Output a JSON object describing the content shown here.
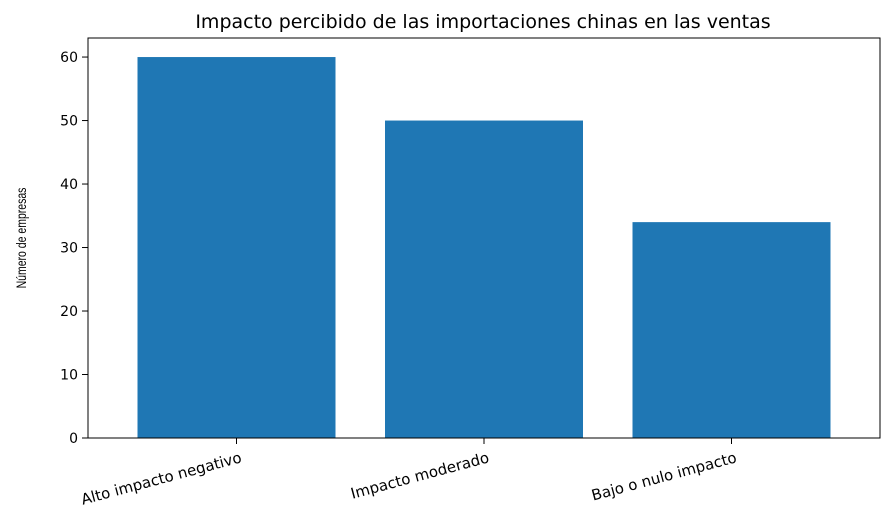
{
  "chart_data": {
    "type": "bar",
    "title": "Impacto percibido de las importaciones chinas en las ventas",
    "xlabel": "",
    "ylabel": "Número de empresas",
    "categories": [
      "Alto impacto negativo",
      "Impacto moderado",
      "Bajo o nulo impacto"
    ],
    "values": [
      60,
      50,
      34
    ],
    "ylim": [
      0,
      63
    ],
    "yticks": [
      0,
      10,
      20,
      30,
      40,
      50,
      60
    ],
    "grid": false,
    "legend": "none",
    "bar_color": "#1f77b4"
  }
}
